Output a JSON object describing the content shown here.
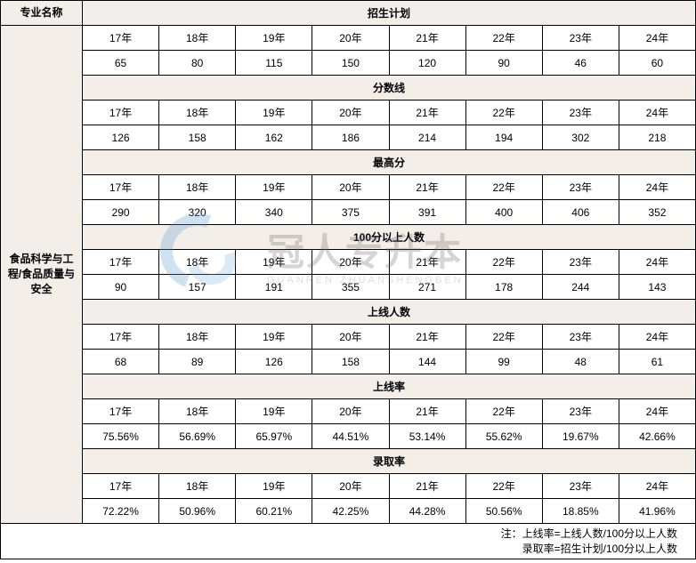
{
  "table": {
    "left_header_title": "专业名称",
    "left_header_value": "食品科学与工程/食品质量与安全",
    "years": [
      "17年",
      "18年",
      "19年",
      "20年",
      "21年",
      "22年",
      "23年",
      "24年"
    ],
    "sections": [
      {
        "title": "招生计划",
        "values": [
          "65",
          "80",
          "115",
          "150",
          "120",
          "90",
          "46",
          "60"
        ]
      },
      {
        "title": "分数线",
        "values": [
          "126",
          "158",
          "162",
          "186",
          "214",
          "194",
          "302",
          "218"
        ]
      },
      {
        "title": "最高分",
        "values": [
          "290",
          "320",
          "340",
          "375",
          "391",
          "400",
          "406",
          "352"
        ]
      },
      {
        "title": "100分以上人数",
        "values": [
          "90",
          "157",
          "191",
          "355",
          "271",
          "178",
          "244",
          "143"
        ]
      },
      {
        "title": "上线人数",
        "values": [
          "68",
          "89",
          "126",
          "158",
          "144",
          "99",
          "48",
          "61"
        ]
      },
      {
        "title": "上线率",
        "values": [
          "75.56%",
          "56.69%",
          "65.97%",
          "44.51%",
          "53.14%",
          "55.62%",
          "19.67%",
          "42.66%"
        ]
      },
      {
        "title": "录取率",
        "values": [
          "72.22%",
          "50.96%",
          "60.21%",
          "42.25%",
          "44.28%",
          "50.56%",
          "18.85%",
          "41.96%"
        ]
      }
    ],
    "note_line1": "注：上线率=上线人数/100分以上人数",
    "note_line2": "录取率=招生计划/100分以上人数"
  },
  "watermark": {
    "title": "冠人专升本",
    "subtitle": "GUANREN ZHUANSHENGBEN"
  },
  "colors": {
    "header_bg": "#f4eee8",
    "border": "#000000",
    "watermark_blue1": "#5a9bd4",
    "watermark_blue2": "#7fb9e0"
  }
}
